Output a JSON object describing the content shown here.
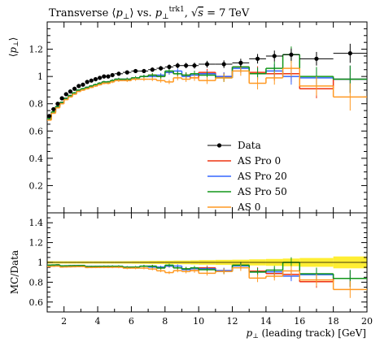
{
  "chart_data": {
    "type": "line",
    "title": "Transverse ⟨p⊥⟩ vs. p⊥trk1, √s = 7 TeV",
    "xlabel": "p⊥ (leading track) [GeV]",
    "ylabel": "⟨p⊥⟩",
    "ratio_ylabel": "MC/Data",
    "xlim": [
      1,
      20
    ],
    "ylim": [
      0,
      1.4
    ],
    "ratio_ylim": [
      0.5,
      1.5
    ],
    "x_ticks": [
      "2",
      "4",
      "6",
      "8",
      "10",
      "12",
      "14",
      "16",
      "18",
      "20"
    ],
    "y_ticks": [
      "0.2",
      "0.4",
      "0.6",
      "0.8",
      "1",
      "1.2"
    ],
    "ratio_y_ticks": [
      "0.6",
      "0.8",
      "1",
      "1.2",
      "1.4"
    ],
    "legend_position": "center-right",
    "bin_edges": [
      1.0,
      1.25,
      1.5,
      1.75,
      2.0,
      2.25,
      2.5,
      2.75,
      3.0,
      3.25,
      3.5,
      3.75,
      4.0,
      4.25,
      4.5,
      4.75,
      5.0,
      5.5,
      6.0,
      6.5,
      7.0,
      7.5,
      8.0,
      8.5,
      9.0,
      9.5,
      10.0,
      11.0,
      12.0,
      13.0,
      14.0,
      15.0,
      16.0,
      18.0,
      20.0
    ],
    "data": {
      "name": "Data",
      "color": "#000000",
      "x": [
        1.125,
        1.375,
        1.625,
        1.875,
        2.125,
        2.375,
        2.625,
        2.875,
        3.125,
        3.375,
        3.625,
        3.875,
        4.125,
        4.375,
        4.625,
        4.875,
        5.25,
        5.75,
        6.25,
        6.75,
        7.25,
        7.75,
        8.25,
        8.75,
        9.25,
        9.75,
        10.5,
        11.5,
        12.5,
        13.5,
        14.5,
        15.5,
        17.0,
        19.0
      ],
      "y": [
        0.71,
        0.76,
        0.8,
        0.84,
        0.87,
        0.89,
        0.91,
        0.93,
        0.94,
        0.96,
        0.97,
        0.98,
        0.99,
        1.0,
        1.0,
        1.01,
        1.02,
        1.03,
        1.04,
        1.04,
        1.05,
        1.06,
        1.07,
        1.08,
        1.08,
        1.08,
        1.09,
        1.09,
        1.1,
        1.13,
        1.15,
        1.16,
        1.13,
        1.17
      ],
      "yerr": [
        0.005,
        0.005,
        0.005,
        0.005,
        0.006,
        0.006,
        0.006,
        0.007,
        0.007,
        0.008,
        0.008,
        0.009,
        0.009,
        0.01,
        0.01,
        0.011,
        0.012,
        0.013,
        0.014,
        0.015,
        0.016,
        0.017,
        0.018,
        0.02,
        0.02,
        0.022,
        0.025,
        0.028,
        0.03,
        0.035,
        0.04,
        0.045,
        0.05,
        0.07
      ]
    },
    "series": [
      {
        "name": "AS Pro 0",
        "color": "#ee3311",
        "y": [
          0.69,
          0.74,
          0.78,
          0.81,
          0.84,
          0.86,
          0.88,
          0.9,
          0.91,
          0.92,
          0.93,
          0.94,
          0.95,
          0.96,
          0.96,
          0.97,
          0.98,
          0.98,
          0.99,
          1.0,
          1.01,
          1.0,
          1.03,
          1.02,
          1.01,
          0.99,
          1.03,
          1.0,
          1.07,
          1.03,
          1.02,
          1.02,
          0.91,
          0.98
        ],
        "err": [
          0.004,
          0.004,
          0.004,
          0.004,
          0.004,
          0.005,
          0.005,
          0.005,
          0.006,
          0.006,
          0.006,
          0.007,
          0.007,
          0.008,
          0.008,
          0.009,
          0.01,
          0.011,
          0.012,
          0.013,
          0.014,
          0.015,
          0.016,
          0.018,
          0.02,
          0.022,
          0.025,
          0.03,
          0.035,
          0.045,
          0.05,
          0.06,
          0.07,
          0.1
        ]
      },
      {
        "name": "AS Pro 20",
        "color": "#3366ff",
        "y": [
          0.69,
          0.74,
          0.78,
          0.81,
          0.84,
          0.86,
          0.88,
          0.9,
          0.91,
          0.92,
          0.93,
          0.94,
          0.95,
          0.96,
          0.96,
          0.97,
          0.98,
          0.98,
          0.99,
          1.0,
          1.0,
          1.01,
          1.03,
          1.04,
          1.0,
          1.01,
          1.02,
          1.0,
          1.06,
          1.02,
          1.04,
          1.0,
          0.99,
          0.98
        ],
        "err": [
          0.004,
          0.004,
          0.004,
          0.004,
          0.004,
          0.005,
          0.005,
          0.005,
          0.006,
          0.006,
          0.006,
          0.007,
          0.007,
          0.008,
          0.008,
          0.009,
          0.01,
          0.011,
          0.012,
          0.013,
          0.014,
          0.015,
          0.016,
          0.018,
          0.02,
          0.022,
          0.025,
          0.03,
          0.035,
          0.045,
          0.05,
          0.06,
          0.07,
          0.1
        ]
      },
      {
        "name": "AS Pro 50",
        "color": "#109618",
        "y": [
          0.69,
          0.74,
          0.78,
          0.81,
          0.84,
          0.86,
          0.88,
          0.9,
          0.91,
          0.92,
          0.93,
          0.94,
          0.95,
          0.96,
          0.96,
          0.97,
          0.98,
          0.98,
          0.99,
          1.0,
          1.01,
          1.0,
          1.04,
          1.02,
          1.01,
          1.02,
          1.01,
          0.99,
          1.07,
          1.02,
          1.06,
          1.16,
          1.0,
          0.98
        ],
        "err": [
          0.004,
          0.004,
          0.004,
          0.004,
          0.004,
          0.005,
          0.005,
          0.005,
          0.006,
          0.006,
          0.006,
          0.007,
          0.007,
          0.008,
          0.008,
          0.009,
          0.01,
          0.011,
          0.012,
          0.013,
          0.014,
          0.015,
          0.016,
          0.018,
          0.02,
          0.022,
          0.025,
          0.03,
          0.035,
          0.045,
          0.05,
          0.06,
          0.07,
          0.1
        ]
      },
      {
        "name": "AS 0",
        "color": "#ff9922",
        "y": [
          0.68,
          0.73,
          0.77,
          0.8,
          0.83,
          0.85,
          0.87,
          0.89,
          0.9,
          0.91,
          0.92,
          0.93,
          0.94,
          0.95,
          0.95,
          0.96,
          0.97,
          0.97,
          0.98,
          0.98,
          0.98,
          0.97,
          0.96,
          0.99,
          0.98,
          0.99,
          0.97,
          0.99,
          1.04,
          0.95,
          0.99,
          1.06,
          0.93,
          0.85
        ],
        "err": [
          0.004,
          0.004,
          0.004,
          0.004,
          0.004,
          0.005,
          0.005,
          0.005,
          0.006,
          0.006,
          0.006,
          0.007,
          0.007,
          0.008,
          0.008,
          0.009,
          0.01,
          0.011,
          0.012,
          0.013,
          0.014,
          0.015,
          0.016,
          0.018,
          0.02,
          0.022,
          0.025,
          0.03,
          0.035,
          0.045,
          0.05,
          0.06,
          0.07,
          0.1
        ]
      }
    ]
  }
}
